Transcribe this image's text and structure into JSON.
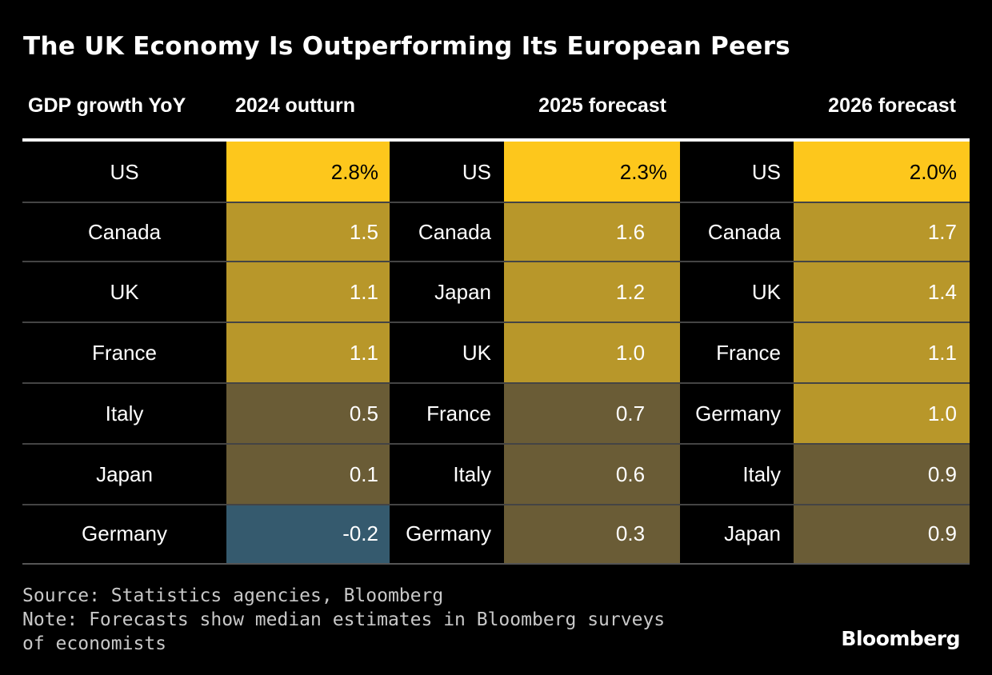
{
  "title": "The UK Economy Is Outperforming Its European Peers",
  "chart_data": {
    "type": "table",
    "title": "The UK Economy Is Outperforming Its European Peers",
    "columns": [
      "GDP growth YoY",
      "2024 outturn",
      "2025 forecast",
      "2026 forecast"
    ],
    "groups": [
      {
        "name": "2024 outturn",
        "rows": [
          {
            "country": "US",
            "value": 2.8,
            "label": "2.8%",
            "color": "#FDC71C"
          },
          {
            "country": "Canada",
            "value": 1.5,
            "label": "1.5",
            "color": "#B8972A"
          },
          {
            "country": "UK",
            "value": 1.1,
            "label": "1.1",
            "color": "#B8972A"
          },
          {
            "country": "France",
            "value": 1.1,
            "label": "1.1",
            "color": "#B8972A"
          },
          {
            "country": "Italy",
            "value": 0.5,
            "label": "0.5",
            "color": "#6A5C36"
          },
          {
            "country": "Japan",
            "value": 0.1,
            "label": "0.1",
            "color": "#6A5C36"
          },
          {
            "country": "Germany",
            "value": -0.2,
            "label": "-0.2",
            "color": "#355A6E"
          }
        ]
      },
      {
        "name": "2025 forecast",
        "rows": [
          {
            "country": "US",
            "value": 2.3,
            "label": "2.3%",
            "color": "#FDC71C"
          },
          {
            "country": "Canada",
            "value": 1.6,
            "label": "1.6",
            "color": "#B8972A"
          },
          {
            "country": "Japan",
            "value": 1.2,
            "label": "1.2",
            "color": "#B8972A"
          },
          {
            "country": "UK",
            "value": 1.0,
            "label": "1.0",
            "color": "#B8972A"
          },
          {
            "country": "France",
            "value": 0.7,
            "label": "0.7",
            "color": "#6A5C36"
          },
          {
            "country": "Italy",
            "value": 0.6,
            "label": "0.6",
            "color": "#6A5C36"
          },
          {
            "country": "Germany",
            "value": 0.3,
            "label": "0.3",
            "color": "#6A5C36"
          }
        ]
      },
      {
        "name": "2026 forecast",
        "rows": [
          {
            "country": "US",
            "value": 2.0,
            "label": "2.0%",
            "color": "#FDC71C"
          },
          {
            "country": "Canada",
            "value": 1.7,
            "label": "1.7",
            "color": "#B8972A"
          },
          {
            "country": "UK",
            "value": 1.4,
            "label": "1.4",
            "color": "#B8972A"
          },
          {
            "country": "France",
            "value": 1.1,
            "label": "1.1",
            "color": "#B8972A"
          },
          {
            "country": "Germany",
            "value": 1.0,
            "label": "1.0",
            "color": "#B8972A"
          },
          {
            "country": "Italy",
            "value": 0.9,
            "label": "0.9",
            "color": "#6A5C36"
          },
          {
            "country": "Japan",
            "value": 0.9,
            "label": "0.9",
            "color": "#6A5C36"
          }
        ]
      }
    ]
  },
  "footer": {
    "source": "Source: Statistics agencies, Bloomberg",
    "note_line1": "Note: Forecasts show median estimates in Bloomberg surveys",
    "note_line2": "of economists"
  },
  "brand": "Bloomberg"
}
